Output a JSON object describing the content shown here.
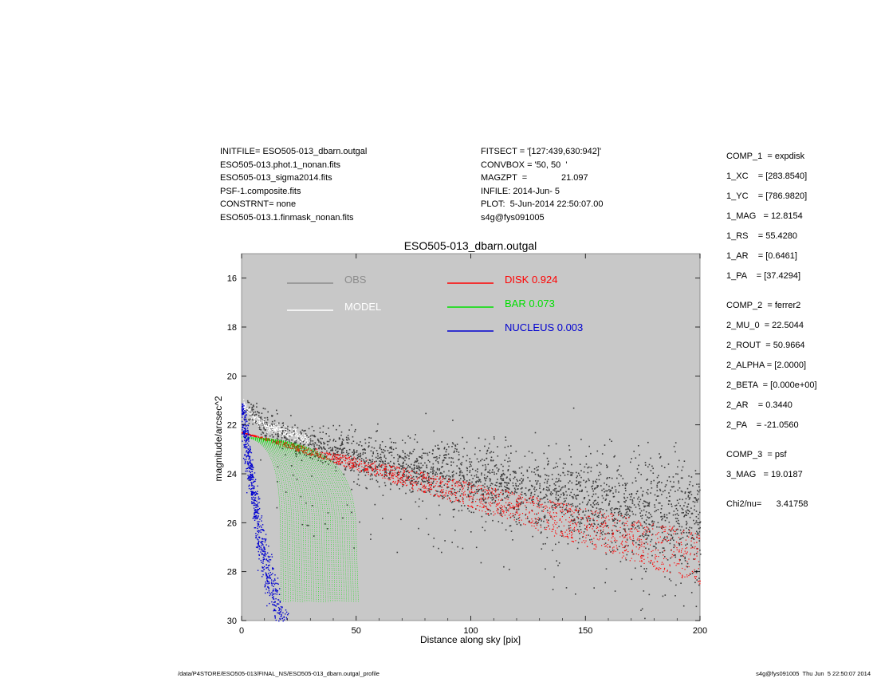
{
  "header_left": [
    "INITFILE= ESO505-013_dbarn.outgal",
    "ESO505-013.phot.1_nonan.fits",
    "ESO505-013_sigma2014.fits",
    "PSF-1.composite.fits",
    "CONSTRNT= none",
    "ESO505-013.1.finmask_nonan.fits"
  ],
  "header_mid": [
    "FITSECT = '[127:439,630:942]'",
    "CONVBOX = '50, 50  '",
    "MAGZPT  =              21.097",
    "INFILE: 2014-Jun- 5",
    "PLOT:  5-Jun-2014 22:50:07.00",
    "s4g@fys091005"
  ],
  "params": [
    {
      "text": "COMP_1  = expdisk",
      "gap": false
    },
    {
      "text": "1_XC    = [283.8540]",
      "gap": false
    },
    {
      "text": "1_YC    = [786.9820]",
      "gap": false
    },
    {
      "text": "1_MAG   = 12.8154",
      "gap": false
    },
    {
      "text": "1_RS    = 55.4280",
      "gap": false
    },
    {
      "text": "1_AR    = [0.6461]",
      "gap": false
    },
    {
      "text": "1_PA    = [37.4294]",
      "gap": false
    },
    {
      "text": "COMP_2  = ferrer2",
      "gap": true
    },
    {
      "text": "2_MU_0  = 22.5044",
      "gap": false
    },
    {
      "text": "2_ROUT  = 50.9664",
      "gap": false
    },
    {
      "text": "2_ALPHA = [2.0000]",
      "gap": false
    },
    {
      "text": "2_BETA  = [0.000e+00]",
      "gap": false
    },
    {
      "text": "2_AR    = 0.3440",
      "gap": false
    },
    {
      "text": "2_PA    = -21.0560",
      "gap": false
    },
    {
      "text": "COMP_3  = psf",
      "gap": true
    },
    {
      "text": "3_MAG   = 19.0187",
      "gap": false
    },
    {
      "text": "Chi2/nu=      3.41758",
      "gap": true
    }
  ],
  "footer": {
    "left": "/data/P4STORE/ESO505-013/FINAL_NS/ESO505-013_dbarn.outgal_profile",
    "right": "s4g@fys091005  Thu Jun  5 22:50:07 2014"
  },
  "chart_data": {
    "type": "scatter",
    "title": "ESO505-013_dbarn.outgal",
    "xlabel": "Distance along sky [pix]",
    "ylabel": "magnitude/arcsec^2",
    "xlim": [
      0,
      200
    ],
    "ylim": [
      30,
      15
    ],
    "y_inverted": true,
    "xticks": [
      0,
      50,
      100,
      150,
      200
    ],
    "yticks": [
      16,
      18,
      20,
      22,
      24,
      26,
      28,
      30
    ],
    "background": "#c8c8c8",
    "legend": [
      {
        "name": "OBS",
        "color": "#8c8c8c"
      },
      {
        "name": "MODEL",
        "color": "#ffffff"
      },
      {
        "name": "DISK  0.924",
        "color": "#ff0000"
      },
      {
        "name": "BAR  0.073",
        "color": "#00e000"
      },
      {
        "name": "NUCLEUS  0.003",
        "color": "#0000d0"
      }
    ],
    "series": [
      {
        "name": "OBS",
        "color": "#3c3c3c",
        "description": "observed pixel intensities, scattered band from y≈21.3 at x≈2 to y≈25–26 at x≈200",
        "x": [
          2,
          10,
          25,
          50,
          75,
          100,
          125,
          150,
          175,
          200
        ],
        "y": [
          21.3,
          22.0,
          22.6,
          23.2,
          23.7,
          24.2,
          24.6,
          25.0,
          25.4,
          25.8
        ]
      },
      {
        "name": "MODEL",
        "color": "#ffffff",
        "x": [
          1,
          5,
          10,
          20,
          30
        ],
        "y": [
          21.2,
          21.7,
          22.0,
          22.3,
          22.6
        ]
      },
      {
        "name": "DISK",
        "color": "#ff0000",
        "upper_edge": {
          "x": [
            0,
            200
          ],
          "y": [
            22.3,
            26.4
          ]
        },
        "lower_edge": {
          "x": [
            0,
            200
          ],
          "y": [
            22.3,
            28.5
          ]
        }
      },
      {
        "name": "BAR",
        "color": "#00e000",
        "mu0": 22.5,
        "rout": 51,
        "x_range": [
          0,
          51
        ],
        "y_range": [
          22.5,
          30
        ]
      },
      {
        "name": "NUCLEUS",
        "color": "#0000d0",
        "x": [
          0,
          3,
          6,
          10,
          14,
          18
        ],
        "y": [
          21.1,
          23.5,
          25.5,
          27.5,
          29.0,
          30.0
        ]
      }
    ]
  }
}
